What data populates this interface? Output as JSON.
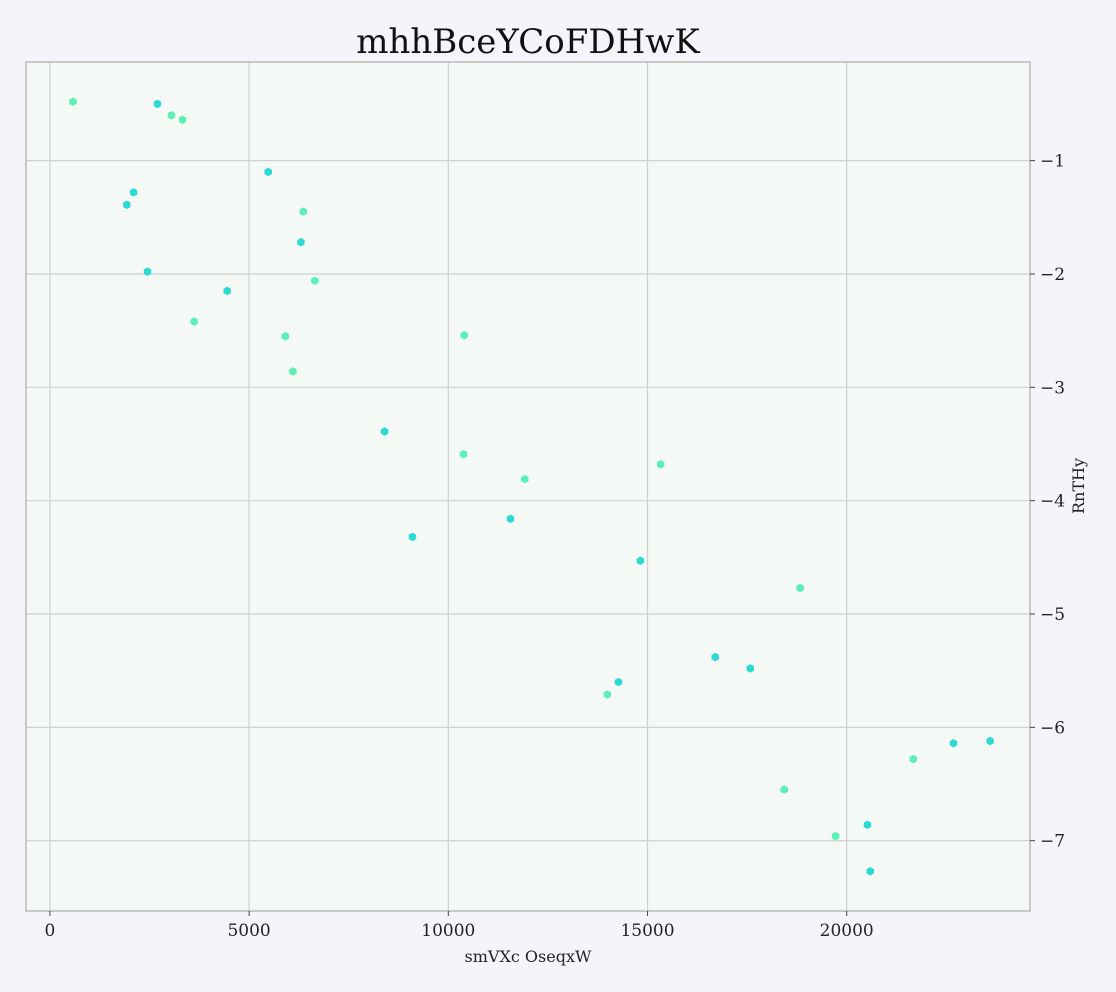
{
  "chart_data": {
    "type": "scatter",
    "title": "mhhBceYCoFDHwK",
    "xlabel": "smVXc OseqxW",
    "ylabel": "RnTHy",
    "xlim": [
      -600,
      24600
    ],
    "ylim": [
      -7.62,
      -0.13
    ],
    "x_ticks": [
      0,
      5000,
      10000,
      15000,
      20000
    ],
    "x_tick_labels": [
      "0",
      "5000",
      "10000",
      "15000",
      "20000"
    ],
    "y_ticks": [
      -1,
      -2,
      -3,
      -4,
      -5,
      -6,
      -7
    ],
    "y_tick_labels": [
      "−1",
      "−2",
      "−3",
      "−4",
      "−5",
      "−6",
      "−7"
    ],
    "y_axis_side": "right",
    "grid": true,
    "colors": {
      "background": "#f6f3fa",
      "plot_background": "#f4f9f6",
      "grid": "#cfcfcf",
      "frame": "#b9b9b9",
      "series_a": "#2ddad3",
      "series_b": "#5cf0b8"
    },
    "series": [
      {
        "color": "#2ddad3",
        "points": [
          [
            2700,
            -0.5
          ],
          [
            2100,
            -1.28
          ],
          [
            1930,
            -1.39
          ],
          [
            5480,
            -1.1
          ],
          [
            6300,
            -1.72
          ],
          [
            2450,
            -1.98
          ],
          [
            4450,
            -2.15
          ],
          [
            8400,
            -3.39
          ],
          [
            9100,
            -4.32
          ],
          [
            11560,
            -4.16
          ],
          [
            14820,
            -4.53
          ],
          [
            16700,
            -5.38
          ],
          [
            17580,
            -5.48
          ],
          [
            14270,
            -5.6
          ],
          [
            20520,
            -6.86
          ],
          [
            22680,
            -6.14
          ],
          [
            23600,
            -6.12
          ],
          [
            20590,
            -7.27
          ]
        ]
      },
      {
        "color": "#5cf0b8",
        "points": [
          [
            580,
            -0.48
          ],
          [
            3050,
            -0.6
          ],
          [
            3330,
            -0.64
          ],
          [
            6360,
            -1.45
          ],
          [
            6650,
            -2.06
          ],
          [
            3620,
            -2.42
          ],
          [
            5910,
            -2.55
          ],
          [
            6100,
            -2.86
          ],
          [
            10400,
            -2.54
          ],
          [
            10380,
            -3.59
          ],
          [
            11920,
            -3.81
          ],
          [
            15330,
            -3.68
          ],
          [
            18830,
            -4.77
          ],
          [
            13990,
            -5.71
          ],
          [
            21670,
            -6.28
          ],
          [
            18430,
            -6.55
          ],
          [
            19720,
            -6.96
          ]
        ]
      }
    ]
  }
}
